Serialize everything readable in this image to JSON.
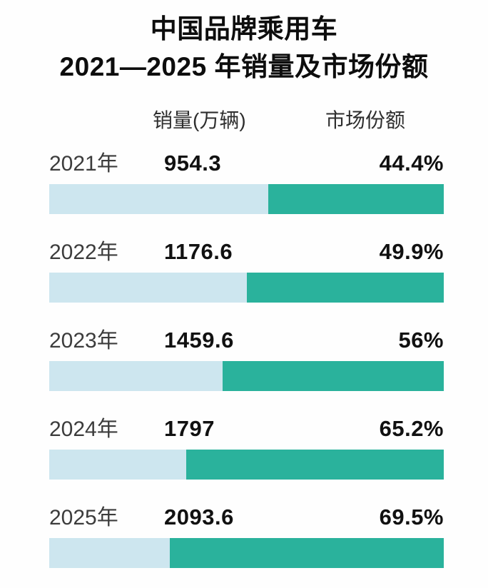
{
  "title": {
    "line1": "中国品牌乘用车",
    "line2": "2021—2025 年销量及市场份额"
  },
  "columns": {
    "sales": "销量(万辆)",
    "share": "市场份额"
  },
  "chart_data": {
    "type": "bar",
    "title": "中国品牌乘用车 2021—2025 年销量及市场份额",
    "categories": [
      "2021年",
      "2022年",
      "2023年",
      "2024年",
      "2025年"
    ],
    "series": [
      {
        "name": "销量(万辆)",
        "values": [
          954.3,
          1176.6,
          1459.6,
          1797,
          2093.6
        ]
      },
      {
        "name": "市场份额(%)",
        "values": [
          44.4,
          49.9,
          56,
          65.2,
          69.5
        ]
      }
    ],
    "layout": {
      "orientation": "horizontal",
      "share_bar_anchor": "right",
      "share_bar_scale": "percent-of-full-width"
    },
    "colors": {
      "share_bar": "#2ab29c",
      "remainder_bar": "#cde6ef"
    },
    "rows": [
      {
        "year": "2021年",
        "sales": "954.3",
        "share_label": "44.4%",
        "share_pct": 44.4
      },
      {
        "year": "2022年",
        "sales": "1176.6",
        "share_label": "49.9%",
        "share_pct": 49.9
      },
      {
        "year": "2023年",
        "sales": "1459.6",
        "share_label": "56%",
        "share_pct": 56
      },
      {
        "year": "2024年",
        "sales": "1797",
        "share_label": "65.2%",
        "share_pct": 65.2
      },
      {
        "year": "2025年",
        "sales": "2093.6",
        "share_label": "69.5%",
        "share_pct": 69.5
      }
    ]
  }
}
